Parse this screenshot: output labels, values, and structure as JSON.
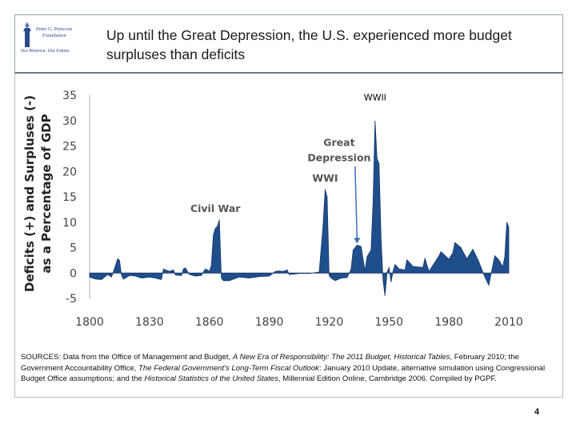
{
  "header": {
    "title": "Up until the Great Depression, the U.S. experienced more budget surpluses than deficits",
    "logo": {
      "line1": "Peter G. Peterson",
      "line2": "Foundation",
      "tagline": "Our America. Our Future."
    }
  },
  "chart_data": {
    "type": "area",
    "title": "",
    "ylabel_line1": "Deficits (+) and Surpluses (-)",
    "ylabel_line2": "as a Percentage of GDP",
    "xlabel": "",
    "xlim": [
      1800,
      2010
    ],
    "ylim": [
      -5,
      35
    ],
    "xticks": [
      "1800",
      "1830",
      "1860",
      "1890",
      "1920",
      "1950",
      "1980",
      "2010"
    ],
    "yticks": [
      "35",
      "30",
      "25",
      "20",
      "15",
      "10",
      "5",
      "0",
      "-5"
    ],
    "grid": false,
    "fill_color": "#1f4e8c",
    "series": [
      {
        "name": "Deficit (+) / Surplus (-) % of GDP",
        "x": [
          1800,
          1803,
          1806,
          1809,
          1811,
          1813,
          1814,
          1815,
          1816,
          1817,
          1820,
          1823,
          1826,
          1830,
          1833,
          1836,
          1837,
          1838,
          1840,
          1842,
          1843,
          1846,
          1847,
          1848,
          1850,
          1853,
          1856,
          1857,
          1858,
          1859,
          1860,
          1861,
          1862,
          1863,
          1864,
          1865,
          1866,
          1867,
          1870,
          1875,
          1880,
          1885,
          1890,
          1893,
          1895,
          1897,
          1899,
          1900,
          1905,
          1910,
          1915,
          1917,
          1918,
          1919,
          1920,
          1921,
          1923,
          1926,
          1929,
          1931,
          1932,
          1934,
          1936,
          1937,
          1938,
          1939,
          1941,
          1942,
          1943,
          1944,
          1945,
          1946,
          1947,
          1948,
          1949,
          1950,
          1951,
          1952,
          1953,
          1955,
          1958,
          1959,
          1962,
          1967,
          1968,
          1970,
          1975,
          1976,
          1980,
          1982,
          1983,
          1986,
          1989,
          1992,
          1995,
          1998,
          2000,
          2002,
          2003,
          2005,
          2007,
          2008,
          2009,
          2010
        ],
        "values": [
          -0.8,
          -1.2,
          -1.3,
          -0.3,
          -0.8,
          1.5,
          2.8,
          2.5,
          -0.5,
          -1.2,
          -0.5,
          -0.6,
          -1.0,
          -0.8,
          -1.0,
          -1.3,
          0.8,
          0.6,
          0.3,
          0.6,
          -0.4,
          -0.5,
          0.8,
          1.0,
          -0.3,
          -0.6,
          -0.5,
          0.2,
          0.8,
          0.6,
          0.3,
          1.5,
          7.5,
          8.8,
          9.2,
          10.5,
          -1.0,
          -1.5,
          -1.5,
          -0.8,
          -1.0,
          -0.7,
          -0.6,
          0.3,
          0.4,
          0.3,
          0.6,
          -0.3,
          -0.1,
          -0.1,
          0.2,
          9.5,
          16.5,
          15.0,
          -0.5,
          -1.0,
          -1.5,
          -1.0,
          -0.9,
          0.8,
          4.5,
          5.5,
          5.2,
          2.8,
          0.5,
          3.2,
          4.5,
          13.8,
          30.0,
          22.5,
          21.5,
          7.0,
          -1.5,
          -4.5,
          0.1,
          1.1,
          -1.8,
          0.4,
          1.7,
          0.8,
          0.6,
          2.6,
          1.3,
          1.1,
          2.9,
          0.3,
          3.4,
          4.2,
          2.7,
          4.0,
          6.0,
          5.0,
          2.8,
          4.7,
          2.2,
          -0.8,
          -2.4,
          1.5,
          3.4,
          2.6,
          1.2,
          3.2,
          10.0,
          9.0
        ]
      }
    ],
    "annotations": [
      {
        "text": "Civil War",
        "x": 1863,
        "y": 12
      },
      {
        "text": "WWI",
        "x": 1918,
        "y": 18
      },
      {
        "text": "Great",
        "x": 1925,
        "y": 25
      },
      {
        "text": "Depression",
        "x": 1925,
        "y": 22
      },
      {
        "text": "WWII",
        "x": 1943,
        "y": 34
      }
    ]
  },
  "sources": {
    "prefix": "SOURCES: Data from the Office of Management and Budget, ",
    "italic1": "A New Era of Responsibility: The 2011 Budget, Historical Tables",
    "mid1": ", February 2010; the Government Accountability Office, ",
    "italic2": "The Federal Government's Long-Term Fiscal Outlook",
    "mid2": ": January 2010 Update, alternative simulation using Congressional Budget Office assumptions; and the ",
    "italic3": "Historical Statistics of the United States",
    "suffix": ", Millennial Edition Online, Cambridge 2006. Compiled by PGPF."
  },
  "page_number": "4"
}
